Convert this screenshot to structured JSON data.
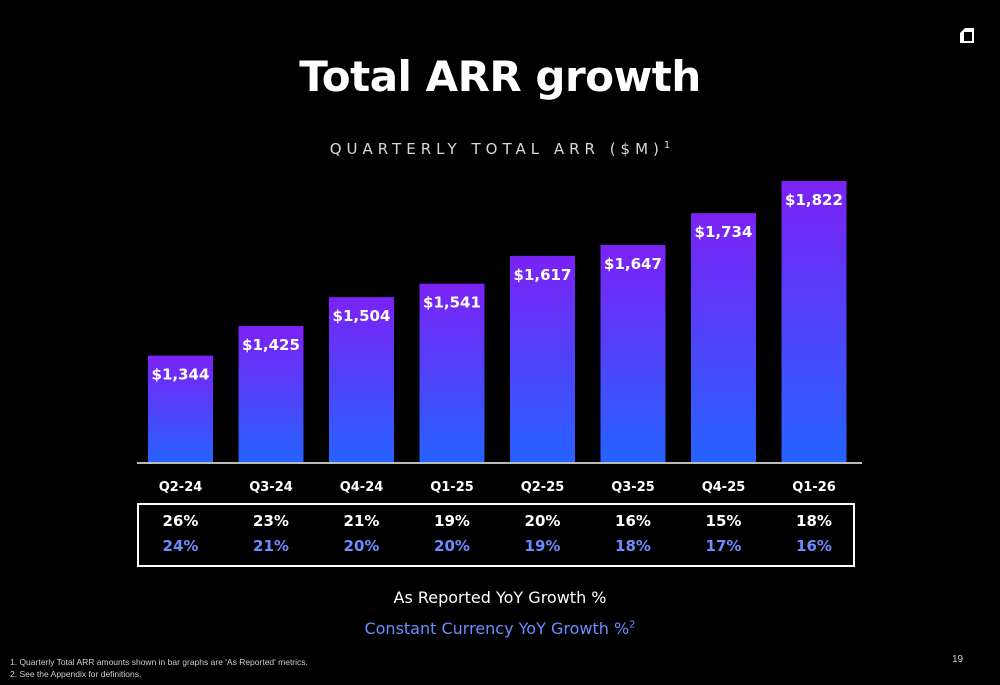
{
  "title": "Total ARR growth",
  "subtitle": "QUARTERLY TOTAL ARR ($M)",
  "subtitle_footnote_marker": "1",
  "chart_data": {
    "type": "bar",
    "categories": [
      "Q2-24",
      "Q3-24",
      "Q4-24",
      "Q1-25",
      "Q2-25",
      "Q3-25",
      "Q4-25",
      "Q1-26"
    ],
    "values": [
      1344,
      1425,
      1504,
      1541,
      1617,
      1647,
      1734,
      1822
    ],
    "value_labels": [
      "$1,344",
      "$1,425",
      "$1,504",
      "$1,541",
      "$1,617",
      "$1,647",
      "$1,734",
      "$1,822"
    ],
    "title": "QUARTERLY TOTAL ARR ($M)",
    "colors": {
      "bar_top": "#7b22f5",
      "bar_bottom": "#2563ff"
    }
  },
  "growth": {
    "as_reported": [
      "26%",
      "23%",
      "21%",
      "19%",
      "20%",
      "16%",
      "15%",
      "18%"
    ],
    "constant_currency": [
      "24%",
      "21%",
      "20%",
      "20%",
      "19%",
      "18%",
      "17%",
      "16%"
    ]
  },
  "legend": {
    "as_reported": "As Reported YoY Growth %",
    "constant_currency": "Constant Currency YoY Growth %",
    "constant_currency_marker": "2"
  },
  "colors": {
    "constant_currency_text": "#6c8dff",
    "background": "#000000"
  },
  "footnotes": [
    "1.   Quarterly Total ARR amounts shown in bar graphs are 'As Reported' metrics.",
    "2.   See the Appendix for definitions."
  ],
  "page_number": "19",
  "logo_icon": "box-logo-icon"
}
